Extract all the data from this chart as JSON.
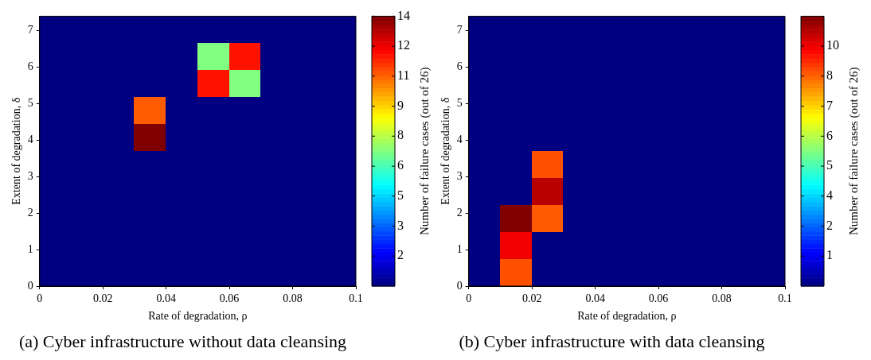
{
  "chart_data": [
    {
      "type": "heatmap",
      "title": "(a) Cyber infrastructure without data cleansing",
      "xlabel": "Rate of degradation, ρ",
      "ylabel": "Extent of degradation, δ",
      "clabel": "Number of failure cases (out of 26)",
      "x": [
        0.005,
        0.015,
        0.025,
        0.035,
        0.045,
        0.055,
        0.065,
        0.075,
        0.085,
        0.095
      ],
      "y": [
        7.03,
        6.29,
        5.55,
        4.81,
        4.07,
        3.33,
        2.59,
        1.85,
        1.11,
        0.37
      ],
      "cells": [
        [
          0,
          0,
          0,
          0,
          0,
          0,
          0,
          0,
          0,
          0
        ],
        [
          0,
          0,
          0,
          0,
          0,
          7,
          12,
          0,
          0,
          0
        ],
        [
          0,
          0,
          0,
          0,
          0,
          12,
          7,
          0,
          0,
          0
        ],
        [
          0,
          0,
          0,
          11,
          0,
          0,
          0,
          0,
          0,
          0
        ],
        [
          0,
          0,
          0,
          14,
          0,
          0,
          0,
          0,
          0,
          0
        ],
        [
          0,
          0,
          0,
          0,
          0,
          0,
          0,
          0,
          0,
          0
        ],
        [
          0,
          0,
          0,
          0,
          0,
          0,
          0,
          0,
          0,
          0
        ],
        [
          0,
          0,
          0,
          0,
          0,
          0,
          0,
          0,
          0,
          0
        ],
        [
          0,
          0,
          0,
          0,
          0,
          0,
          0,
          0,
          0,
          0
        ],
        [
          0,
          0,
          0,
          0,
          0,
          0,
          0,
          0,
          0,
          0
        ]
      ],
      "xlim": [
        0,
        0.1
      ],
      "xticks": [
        0,
        0.02,
        0.04,
        0.06,
        0.08,
        0.1
      ],
      "ylim": [
        0,
        7.4
      ],
      "yticks": [
        0,
        1,
        2,
        3,
        4,
        5,
        6,
        7
      ],
      "clim": [
        0,
        14
      ],
      "cticks": [
        {
          "value": 1.56,
          "label": "2"
        },
        {
          "value": 3.11,
          "label": "3"
        },
        {
          "value": 4.67,
          "label": "5"
        },
        {
          "value": 6.22,
          "label": "6"
        },
        {
          "value": 7.78,
          "label": "8"
        },
        {
          "value": 9.33,
          "label": "9"
        },
        {
          "value": 10.89,
          "label": "11"
        },
        {
          "value": 12.44,
          "label": "12"
        },
        14
      ]
    },
    {
      "type": "heatmap",
      "title": "(b) Cyber infrastructure with data cleansing",
      "xlabel": "Rate of degradation, ρ",
      "ylabel": "Extent of degradation, δ",
      "clabel": "Number of failure cases (out of 26)",
      "x": [
        0.005,
        0.015,
        0.025,
        0.035,
        0.045,
        0.055,
        0.065,
        0.075,
        0.085,
        0.095
      ],
      "y": [
        7.03,
        6.29,
        5.55,
        4.81,
        4.07,
        3.33,
        2.59,
        1.85,
        1.11,
        0.37
      ],
      "cells": [
        [
          0,
          0,
          0,
          0,
          0,
          0,
          0,
          0,
          0,
          0
        ],
        [
          0,
          0,
          0,
          0,
          0,
          0,
          0,
          0,
          0,
          0
        ],
        [
          0,
          0,
          0,
          0,
          0,
          0,
          0,
          0,
          0,
          0
        ],
        [
          0,
          0,
          0,
          0,
          0,
          0,
          0,
          0,
          0,
          0
        ],
        [
          0,
          0,
          0,
          0,
          0,
          0,
          0,
          0,
          0,
          0
        ],
        [
          0,
          0,
          8.6,
          0,
          0,
          0,
          0,
          0,
          0,
          0
        ],
        [
          0,
          0,
          10.2,
          0,
          0,
          0,
          0,
          0,
          0,
          0
        ],
        [
          0,
          10.8,
          8.5,
          0,
          0,
          0,
          0,
          0,
          0,
          0
        ],
        [
          0,
          9.6,
          0,
          0,
          0,
          0,
          0,
          0,
          0,
          0
        ],
        [
          0,
          8.6,
          0,
          0,
          0,
          0,
          0,
          0,
          0,
          0
        ]
      ],
      "xlim": [
        0,
        0.1
      ],
      "xticks": [
        0,
        0.02,
        0.04,
        0.06,
        0.08,
        0.1
      ],
      "ylim": [
        0,
        7.4
      ],
      "yticks": [
        0,
        1,
        2,
        3,
        4,
        5,
        6,
        7
      ],
      "clim": [
        0,
        10.8
      ],
      "cticks": [
        {
          "value": 1.2,
          "label": "1"
        },
        {
          "value": 2.4,
          "label": "2"
        },
        {
          "value": 3.6,
          "label": "4"
        },
        {
          "value": 4.8,
          "label": "5"
        },
        {
          "value": 6,
          "label": "6"
        },
        {
          "value": 7.2,
          "label": "7"
        },
        {
          "value": 8.4,
          "label": "8"
        },
        {
          "value": 9.6,
          "label": "10"
        }
      ]
    }
  ]
}
